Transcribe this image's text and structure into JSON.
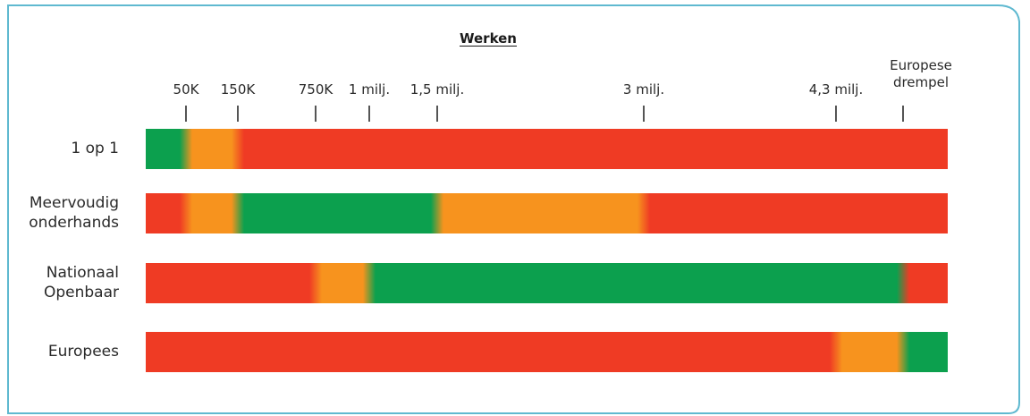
{
  "chart_data": {
    "type": "heatmap",
    "title": "Werken",
    "x_scale": "piecewise",
    "colors": {
      "green": "#0ca04e",
      "orange": "#f7931e",
      "red": "#ef3b24",
      "tick": "#555555",
      "frame": "#5fb9d0"
    },
    "ticks": [
      {
        "label": "50K",
        "value": 50000
      },
      {
        "label": "150K",
        "value": 150000
      },
      {
        "label": "750K",
        "value": 750000
      },
      {
        "label": "1 milj.",
        "value": 1000000
      },
      {
        "label": "1,5 milj.",
        "value": 1500000
      },
      {
        "label": "3 milj.",
        "value": 3000000
      },
      {
        "label": "4,3 milj.",
        "value": 4300000
      },
      {
        "label": "Europese drempel",
        "value": 5000000
      }
    ],
    "rows": [
      {
        "label": "1 op 1",
        "segments": [
          {
            "color": "green",
            "from": 0,
            "to": 50000
          },
          {
            "color": "orange",
            "from": 50000,
            "to": 150000
          },
          {
            "color": "red",
            "from": 150000,
            "to": 5500000
          }
        ]
      },
      {
        "label": "Meervoudig onderhands",
        "segments": [
          {
            "color": "red",
            "from": 0,
            "to": 50000
          },
          {
            "color": "orange",
            "from": 50000,
            "to": 150000
          },
          {
            "color": "green",
            "from": 150000,
            "to": 1500000
          },
          {
            "color": "orange",
            "from": 1500000,
            "to": 3000000
          },
          {
            "color": "red",
            "from": 3000000,
            "to": 5500000
          }
        ]
      },
      {
        "label": "Nationaal Openbaar",
        "segments": [
          {
            "color": "red",
            "from": 0,
            "to": 750000
          },
          {
            "color": "orange",
            "from": 750000,
            "to": 1000000
          },
          {
            "color": "green",
            "from": 1000000,
            "to": 5000000
          },
          {
            "color": "red",
            "from": 5000000,
            "to": 5500000
          }
        ]
      },
      {
        "label": "Europees",
        "segments": [
          {
            "color": "red",
            "from": 0,
            "to": 4300000
          },
          {
            "color": "orange",
            "from": 4300000,
            "to": 5000000
          },
          {
            "color": "green",
            "from": 5000000,
            "to": 5500000
          }
        ]
      }
    ]
  }
}
